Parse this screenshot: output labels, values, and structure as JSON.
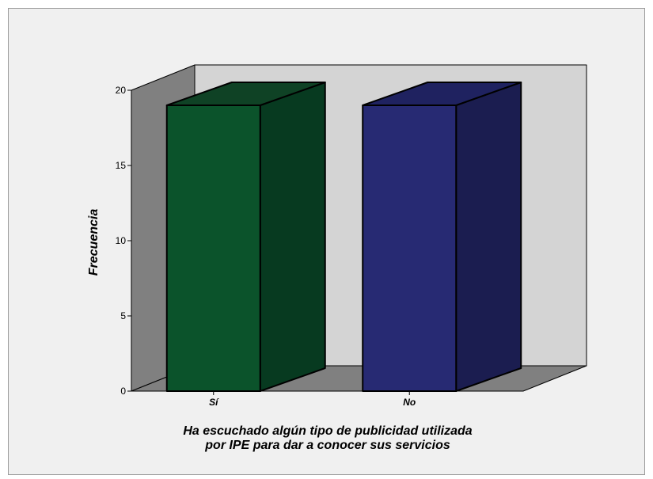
{
  "chart_data": {
    "type": "bar",
    "style": "3d",
    "categories": [
      "Sí",
      "No"
    ],
    "values": [
      19,
      19
    ],
    "xlabel_lines": [
      "Ha escuchado algún tipo de publicidad utilizada",
      "por IPE para dar a conocer sus servicios"
    ],
    "ylabel": "Frecuencia",
    "ylim": [
      0,
      20
    ],
    "yticks": [
      "0",
      "5",
      "10",
      "15",
      "20"
    ],
    "grid": false,
    "legend": "none",
    "colors": {
      "bars": [
        "#0b532b",
        "#272a73"
      ],
      "bars_side": [
        "#073a20",
        "#1b1d50"
      ],
      "bars_top": [
        "#0f4225",
        "#1f2260"
      ],
      "back_wall": "#d4d4d4",
      "side_wall": "#808080",
      "floor": "#808080",
      "frame_bg": "#f0f0f0"
    }
  }
}
